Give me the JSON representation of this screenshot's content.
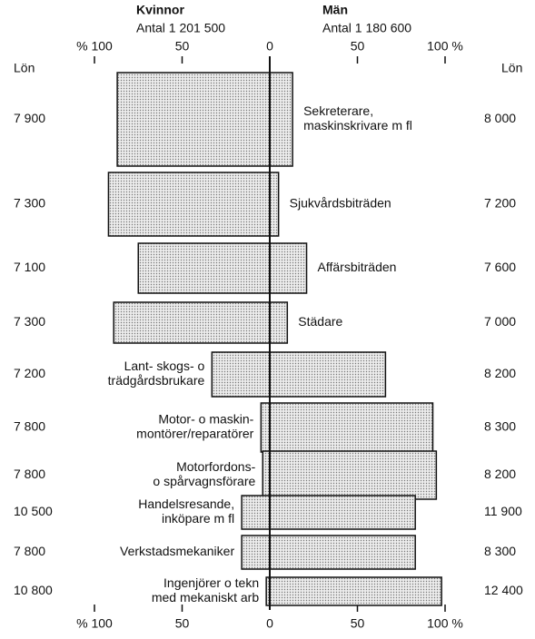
{
  "chart_data": {
    "type": "butterfly",
    "left_title": "Kvinnor",
    "left_subtitle": "Antal 1 201 500",
    "right_title": "Män",
    "right_subtitle": "Antal 1 180 600",
    "left_salary_header": "Lön",
    "right_salary_header": "Lön",
    "categories": [
      [
        "Sekreterare,",
        "maskinskrivare m fl"
      ],
      [
        "Sjukvårdsbiträden"
      ],
      [
        "Affärsbiträden"
      ],
      [
        "Städare"
      ],
      [
        "Lant- skogs- o",
        "trädgårdsbrukare"
      ],
      [
        "Motor- o maskin-",
        "montörer/reparatörer"
      ],
      [
        "Motorfordons-",
        "o spårvagnsförare"
      ],
      [
        "Handelsresande,",
        "inköpare m fl"
      ],
      [
        "Verkstadsmekaniker"
      ],
      [
        "Ingenjörer o tekn",
        "med mekaniskt arb"
      ]
    ],
    "series": [
      {
        "name": "Kvinnor",
        "color": "#e2e2e2",
        "values": [
          87,
          92,
          75,
          89,
          33,
          5,
          4,
          16,
          16,
          2
        ],
        "salaries": [
          "7 900",
          "7 300",
          "7 100",
          "7 300",
          "7 200",
          "7 800",
          "7 800",
          "10 500",
          "7 800",
          "10 800"
        ]
      },
      {
        "name": "Män",
        "color": "#e2e2e2",
        "values": [
          13,
          5,
          21,
          10,
          66,
          93,
          95,
          83,
          83,
          98
        ],
        "salaries": [
          "8 000",
          "7 200",
          "7 600",
          "7 000",
          "8 200",
          "8 300",
          "8 200",
          "11 900",
          "8 300",
          "12 400"
        ]
      }
    ],
    "xlim": [
      -100,
      100
    ],
    "xticks": [
      {
        "value": -100,
        "label": "% 100"
      },
      {
        "value": -50,
        "label": "50"
      },
      0,
      50,
      {
        "value": 100,
        "label": "100 %"
      }
    ]
  }
}
